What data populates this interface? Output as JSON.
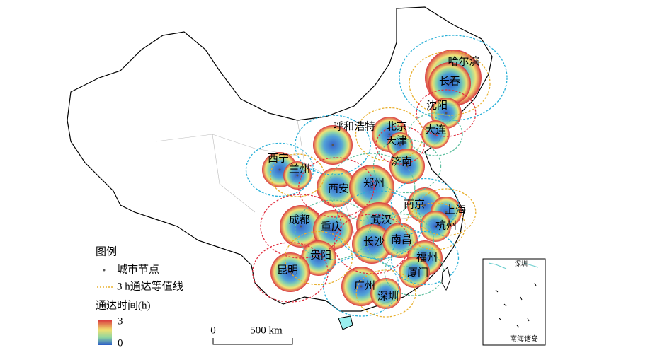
{
  "cities": [
    "哈尔滨",
    "长春",
    "沈阳",
    "大连",
    "呼和浩特",
    "北京",
    "天津",
    "济南",
    "西宁",
    "兰州",
    "西安",
    "郑州",
    "南京",
    "上海",
    "成都",
    "重庆",
    "武汉",
    "杭州",
    "长沙",
    "南昌",
    "福州",
    "贵阳",
    "昆明",
    "厦门",
    "广州",
    "深圳"
  ],
  "legend": {
    "title": "图例",
    "items": [
      "城市节点",
      "3 h通达等值线"
    ],
    "colorbar_title": "通达时间(h)",
    "colorbar_max": "3",
    "colorbar_min": "0"
  },
  "scale_bar": {
    "start": "0",
    "end": "500 km"
  },
  "inset": {
    "city": "深圳",
    "label": "南海诸岛"
  }
}
